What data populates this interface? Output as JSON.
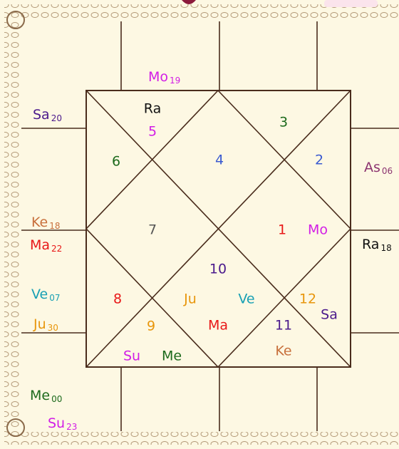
{
  "houses": [
    {
      "number": "1",
      "planets": [
        "Mo"
      ]
    },
    {
      "number": "2",
      "planets": []
    },
    {
      "number": "3",
      "planets": []
    },
    {
      "number": "4",
      "planets": []
    },
    {
      "number": "5",
      "planets": [
        "Ra"
      ]
    },
    {
      "number": "6",
      "planets": []
    },
    {
      "number": "7",
      "planets": []
    },
    {
      "number": "8",
      "planets": []
    },
    {
      "number": "9",
      "planets": [
        "Su",
        "Me"
      ]
    },
    {
      "number": "10",
      "planets": [
        "Ju",
        "Ve",
        "Ma"
      ]
    },
    {
      "number": "11",
      "planets": [
        "Ke"
      ]
    },
    {
      "number": "12",
      "planets": [
        "Sa"
      ]
    }
  ],
  "degrees": [
    {
      "planet": "Mo",
      "degree": "19"
    },
    {
      "planet": "Sa",
      "degree": "20"
    },
    {
      "planet": "Ke",
      "degree": "18"
    },
    {
      "planet": "Ma",
      "degree": "22"
    },
    {
      "planet": "Ve",
      "degree": "07"
    },
    {
      "planet": "Ju",
      "degree": "30"
    },
    {
      "planet": "Me",
      "degree": "00"
    },
    {
      "planet": "Su",
      "degree": "23"
    },
    {
      "planet": "As",
      "degree": "06"
    },
    {
      "planet": "Ra",
      "degree": "18"
    }
  ]
}
